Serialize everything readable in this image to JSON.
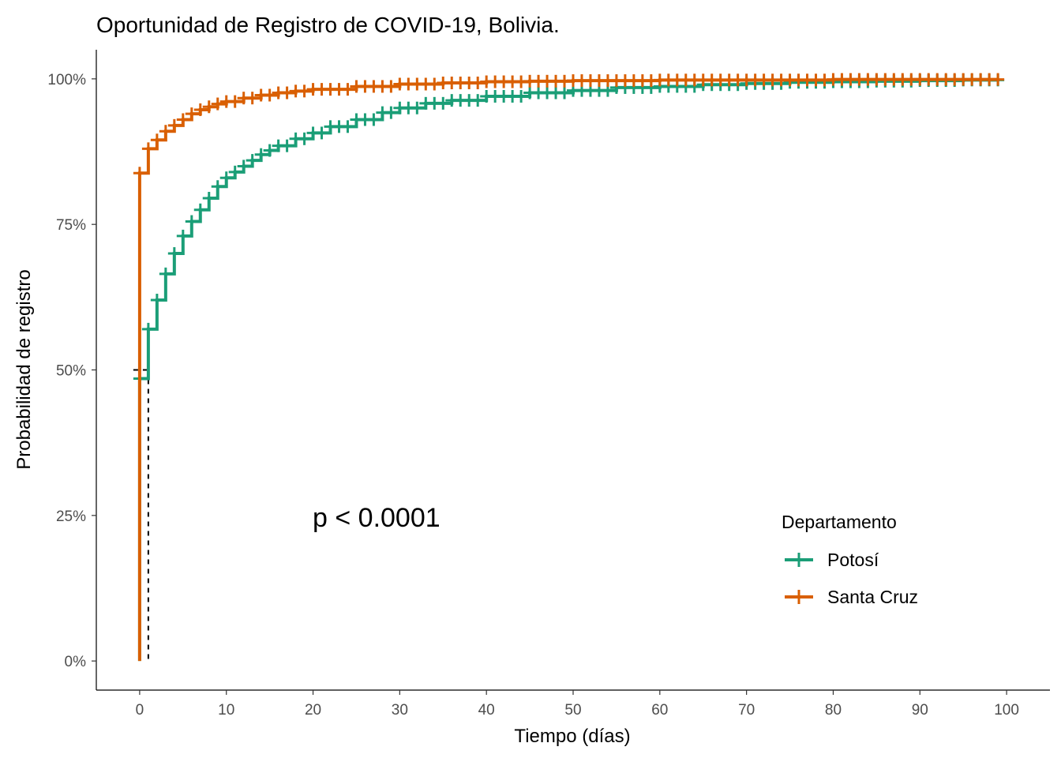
{
  "chart_data": {
    "type": "line",
    "title": "Oportunidad de Registro de COVID-19, Bolivia.",
    "xlabel": "Tiempo (días)",
    "ylabel": "Probabilidad de registro",
    "xlim": [
      -5,
      105
    ],
    "ylim": [
      -0.05,
      1.05
    ],
    "x_ticks": [
      0,
      10,
      20,
      30,
      40,
      50,
      60,
      70,
      80,
      90,
      100
    ],
    "x_tick_labels": [
      "0",
      "10",
      "20",
      "30",
      "40",
      "50",
      "60",
      "70",
      "80",
      "90",
      "100"
    ],
    "y_ticks": [
      0,
      0.25,
      0.5,
      0.75,
      1.0
    ],
    "y_tick_labels": [
      "0%",
      "25%",
      "50%",
      "75%",
      "100%"
    ],
    "grid": false,
    "step": true,
    "censor_marks": true,
    "annotation": "p < 0.0001",
    "median_lines": [
      0,
      1
    ],
    "legend": {
      "title": "Departamento",
      "position": "bottom-right"
    },
    "series": [
      {
        "name": "Potosí",
        "color": "#1b9e77",
        "x": [
          0,
          1,
          2,
          3,
          4,
          5,
          6,
          7,
          8,
          9,
          10,
          11,
          12,
          13,
          14,
          15,
          16,
          18,
          20,
          22,
          25,
          28,
          30,
          33,
          36,
          40,
          45,
          50,
          55,
          60,
          65,
          70,
          75,
          80,
          85,
          90,
          95,
          99
        ],
        "values": [
          0.485,
          0.57,
          0.62,
          0.665,
          0.7,
          0.73,
          0.755,
          0.775,
          0.795,
          0.815,
          0.83,
          0.84,
          0.85,
          0.86,
          0.87,
          0.877,
          0.885,
          0.897,
          0.907,
          0.918,
          0.93,
          0.942,
          0.95,
          0.958,
          0.963,
          0.97,
          0.976,
          0.98,
          0.985,
          0.987,
          0.99,
          0.992,
          0.994,
          0.995,
          0.996,
          0.997,
          0.998,
          0.998
        ]
      },
      {
        "name": "Santa Cruz",
        "color": "#d95f02",
        "x": [
          0,
          1,
          2,
          3,
          4,
          5,
          6,
          7,
          8,
          9,
          10,
          12,
          14,
          16,
          18,
          20,
          25,
          30,
          35,
          40,
          45,
          50,
          60,
          70,
          80,
          90,
          99
        ],
        "values": [
          0.838,
          0.88,
          0.895,
          0.91,
          0.92,
          0.93,
          0.94,
          0.947,
          0.952,
          0.957,
          0.961,
          0.967,
          0.972,
          0.976,
          0.979,
          0.982,
          0.987,
          0.991,
          0.993,
          0.995,
          0.996,
          0.997,
          0.998,
          0.998,
          0.999,
          0.999,
          0.999
        ]
      }
    ]
  }
}
